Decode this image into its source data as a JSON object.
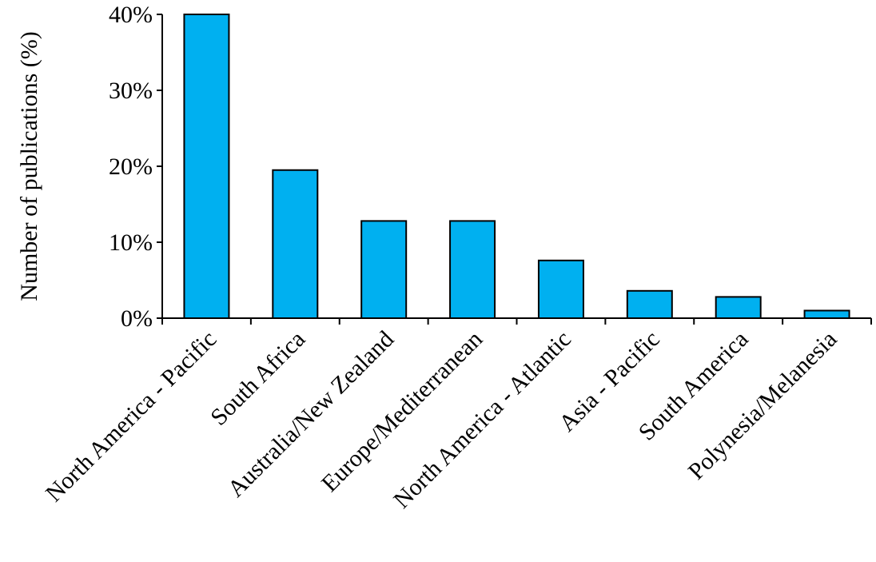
{
  "chart_data": {
    "type": "bar",
    "title": "",
    "xlabel": "",
    "ylabel": "Number of publications (%)",
    "ylim": [
      0,
      40
    ],
    "yticks": [
      0,
      10,
      20,
      30,
      40
    ],
    "ytick_labels": [
      "0%",
      "10%",
      "20%",
      "30%",
      "40%"
    ],
    "categories": [
      "North America - Pacific",
      "South Africa",
      "Australia/New Zealand",
      "Europe/Mediterranean",
      "North America - Atlantic",
      "Asia - Pacific",
      "South America",
      "Polynesia/Melanesia"
    ],
    "values": [
      40.0,
      19.5,
      12.8,
      12.8,
      7.6,
      3.6,
      2.8,
      1.0
    ],
    "bar_color": "#00b0f0",
    "bar_edge_color": "#000000",
    "grid": false,
    "legend": "none"
  }
}
